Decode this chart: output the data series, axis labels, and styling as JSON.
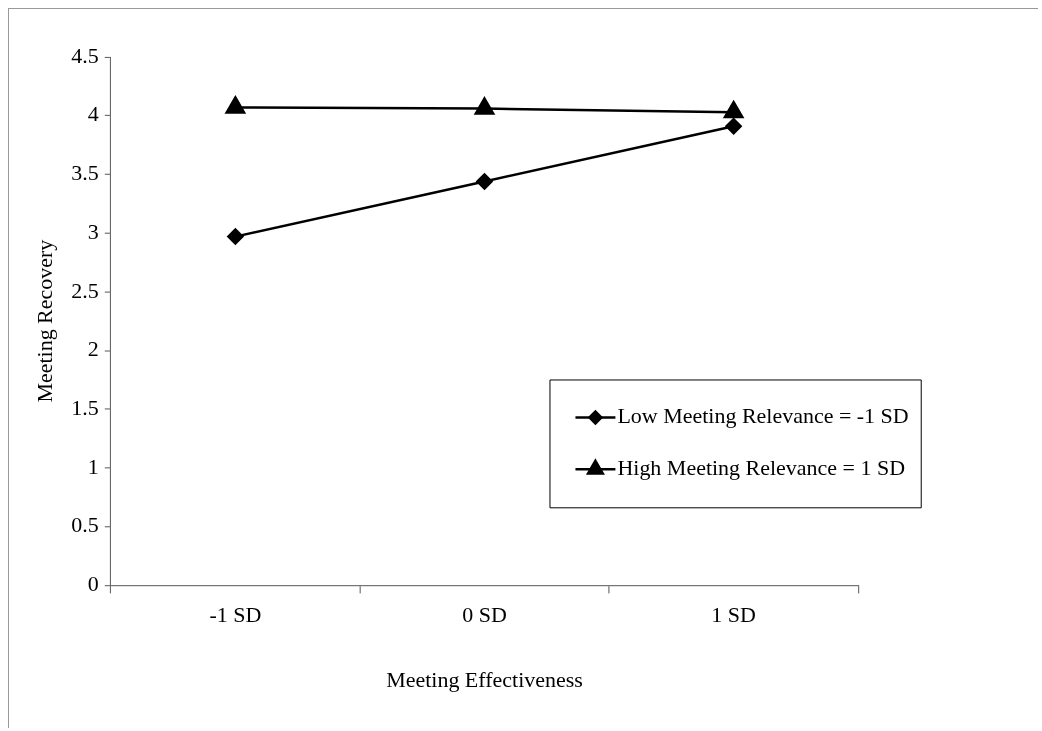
{
  "chart_data": {
    "type": "line",
    "xlabel": "Meeting Effectiveness",
    "ylabel": "Meeting Recovery",
    "categories": [
      "-1 SD",
      "0 SD",
      "1 SD"
    ],
    "series": [
      {
        "name": "Low Meeting Relevance = -1 SD",
        "color": "#000000",
        "marker": "diamond",
        "values": [
          2.97,
          3.44,
          3.91
        ]
      },
      {
        "name": "High Meeting Relevance = 1 SD",
        "color": "#000000",
        "marker": "triangle",
        "values": [
          4.07,
          4.06,
          4.03
        ]
      }
    ],
    "ylim": [
      0,
      4.5
    ],
    "yticks": [
      0,
      0.5,
      1,
      1.5,
      2,
      2.5,
      3,
      3.5,
      4,
      4.5
    ],
    "grid": false,
    "legend": "right",
    "line_style": "solid"
  }
}
